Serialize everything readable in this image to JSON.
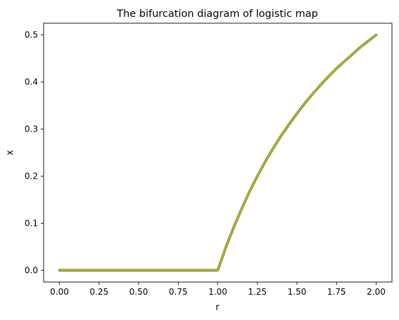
{
  "chart_data": {
    "type": "line",
    "title": "The bifurcation diagram of logistic map",
    "xlabel": "r",
    "ylabel": "x",
    "xlim": [
      -0.1,
      2.1
    ],
    "ylim": [
      -0.025,
      0.525
    ],
    "grid": false,
    "xticks": [
      0.0,
      0.25,
      0.5,
      0.75,
      1.0,
      1.25,
      1.5,
      1.75,
      2.0
    ],
    "xtick_labels": [
      "0.00",
      "0.25",
      "0.50",
      "0.75",
      "1.00",
      "1.25",
      "1.50",
      "1.75",
      "2.00"
    ],
    "yticks": [
      0.0,
      0.1,
      0.2,
      0.3,
      0.4,
      0.5
    ],
    "ytick_labels": [
      "0.0",
      "0.1",
      "0.2",
      "0.3",
      "0.4",
      "0.5"
    ],
    "series": [
      {
        "color": "#bcbd22",
        "edge_color": "#7a7a3a",
        "x": [
          0.0,
          0.1,
          0.2,
          0.3,
          0.4,
          0.5,
          0.6,
          0.7,
          0.8,
          0.9,
          1.0,
          1.05,
          1.1,
          1.15,
          1.2,
          1.25,
          1.3,
          1.35,
          1.4,
          1.45,
          1.5,
          1.55,
          1.6,
          1.65,
          1.7,
          1.75,
          1.8,
          1.85,
          1.9,
          1.95,
          2.0
        ],
        "y": [
          0.0,
          0.0,
          0.0,
          0.0,
          0.0,
          0.0,
          0.0,
          0.0,
          0.0,
          0.0,
          0.0,
          0.048,
          0.091,
          0.13,
          0.167,
          0.2,
          0.231,
          0.259,
          0.286,
          0.31,
          0.333,
          0.355,
          0.375,
          0.394,
          0.412,
          0.429,
          0.444,
          0.459,
          0.474,
          0.487,
          0.5
        ]
      }
    ]
  }
}
